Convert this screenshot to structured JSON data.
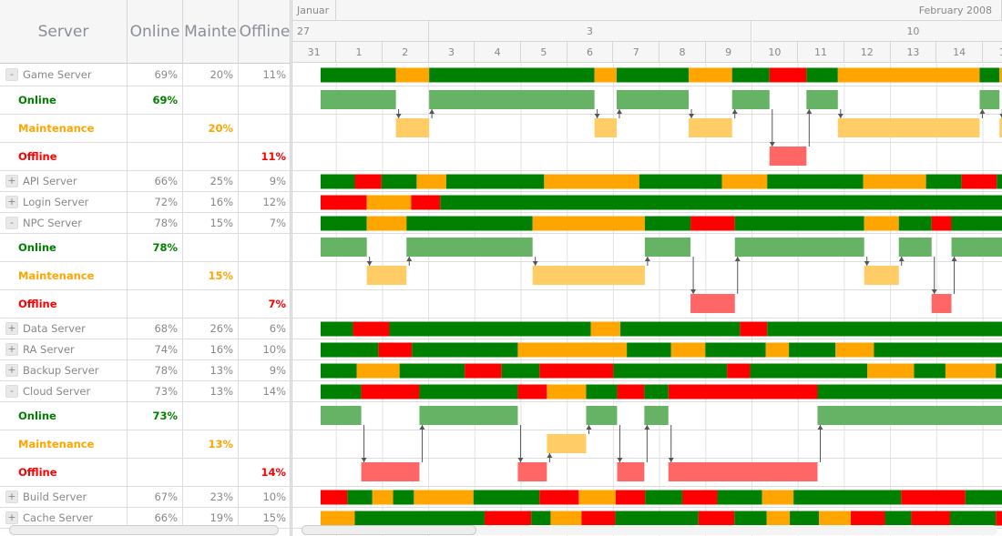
{
  "columns": {
    "server": "Server",
    "online": "Online",
    "maintenance": "Mainte",
    "offline": "Offline"
  },
  "child_labels": {
    "online": "Online",
    "maintenance": "Maintenance",
    "offline": "Offline"
  },
  "colors": {
    "online": "#008000",
    "maintenance": "#FFA500",
    "offline": "#FF0000",
    "online_light": "#66b366",
    "maintenance_light": "#ffcc66",
    "offline_light": "#ff6666"
  },
  "status_codes": {
    "G": "online",
    "O": "maintenance",
    "R": "offline"
  },
  "timeline": {
    "months": [
      "Januar",
      "February 2008"
    ],
    "weeks": [
      "27",
      "3",
      "10"
    ],
    "days": [
      "31",
      "1",
      "2",
      "3",
      "4",
      "5",
      "6",
      "7",
      "8",
      "9",
      "10",
      "11",
      "12",
      "13",
      "14",
      "15"
    ],
    "day_unit_note": "segment bounds are in days from Jan 31"
  },
  "servers": [
    {
      "name": "Game Server",
      "online": "69%",
      "maintenance": "20%",
      "offline": "11%",
      "expanded": true,
      "bounds": [
        0.66,
        2.29,
        3.01,
        6.59,
        7.07,
        8.63,
        9.57,
        10.38,
        11.18,
        11.86,
        14.93,
        15.36,
        15.7
      ],
      "states": "GOGOGOGRGOGO"
    },
    {
      "name": "API Server",
      "online": "66%",
      "maintenance": "25%",
      "offline": "9%",
      "expanded": false,
      "bounds": [
        0.66,
        1.4,
        1.98,
        2.74,
        3.38,
        5.5,
        7.56,
        9.35,
        10.33,
        12.41,
        13.77,
        14.54,
        15.3,
        15.7
      ],
      "states": "GRGOGOGOGOGRG"
    },
    {
      "name": "Login Server",
      "online": "72%",
      "maintenance": "16%",
      "offline": "12%",
      "expanded": false,
      "bounds": [
        0.66,
        1.66,
        2.62,
        3.25,
        15.7
      ],
      "states": "RORG"
    },
    {
      "name": "NPC Server",
      "online": "78%",
      "maintenance": "15%",
      "offline": "7%",
      "expanded": true,
      "bounds": [
        0.66,
        1.66,
        2.52,
        5.25,
        7.68,
        8.67,
        9.63,
        12.43,
        13.18,
        13.89,
        14.32,
        15.7
      ],
      "states": "GOGOGRGOGRG"
    },
    {
      "name": "Data Server",
      "online": "68%",
      "maintenance": "26%",
      "offline": "6%",
      "expanded": false,
      "bounds": [
        0.66,
        1.36,
        2.15,
        6.51,
        7.15,
        9.74,
        10.33,
        15.7
      ],
      "states": "GRGOGRG"
    },
    {
      "name": "RA Server",
      "online": "74%",
      "maintenance": "16%",
      "offline": "10%",
      "expanded": false,
      "bounds": [
        0.66,
        1.91,
        2.64,
        4.93,
        7.29,
        8.25,
        8.99,
        10.3,
        10.8,
        11.81,
        12.64,
        15.7
      ],
      "states": "GRGOGOGOGOG"
    },
    {
      "name": "Backup Server",
      "online": "78%",
      "maintenance": "13%",
      "offline": "9%",
      "expanded": false,
      "bounds": [
        0.66,
        1.44,
        2.37,
        3.78,
        4.58,
        5.4,
        7.0,
        9.46,
        9.96,
        12.5,
        13.51,
        14.19,
        15.28,
        15.7
      ],
      "states": "GOGRGRGRGOGOG"
    },
    {
      "name": "Cloud Server",
      "online": "73%",
      "maintenance": "13%",
      "offline": "14%",
      "expanded": true,
      "bounds": [
        0.66,
        1.54,
        2.8,
        4.93,
        5.56,
        6.41,
        7.08,
        7.67,
        8.19,
        11.42,
        15.7
      ],
      "states": "GRGROGRGRG"
    },
    {
      "name": "Build Server",
      "online": "67%",
      "maintenance": "23%",
      "offline": "10%",
      "expanded": false,
      "bounds": [
        0.66,
        1.24,
        1.78,
        2.23,
        2.68,
        3.97,
        5.4,
        6.25,
        7.05,
        7.69,
        8.49,
        9.25,
        10.22,
        10.9,
        13.23,
        14.62,
        15.7
      ],
      "states": "RGOGOGRORGRGOGRG"
    },
    {
      "name": "Cache Server",
      "online": "66%",
      "maintenance": "19%",
      "offline": "15%",
      "expanded": false,
      "bounds": [
        0.66,
        1.4,
        4.21,
        5.22,
        5.64,
        6.31,
        7.04,
        8.84,
        9.62,
        10.32,
        10.82,
        11.45,
        12.14,
        12.88,
        13.45,
        14.29,
        15.28,
        15.7
      ],
      "states": "OGRGORGRGOGORGRGR"
    }
  ],
  "expand_symbols": {
    "expanded": "-",
    "collapsed": "+"
  }
}
